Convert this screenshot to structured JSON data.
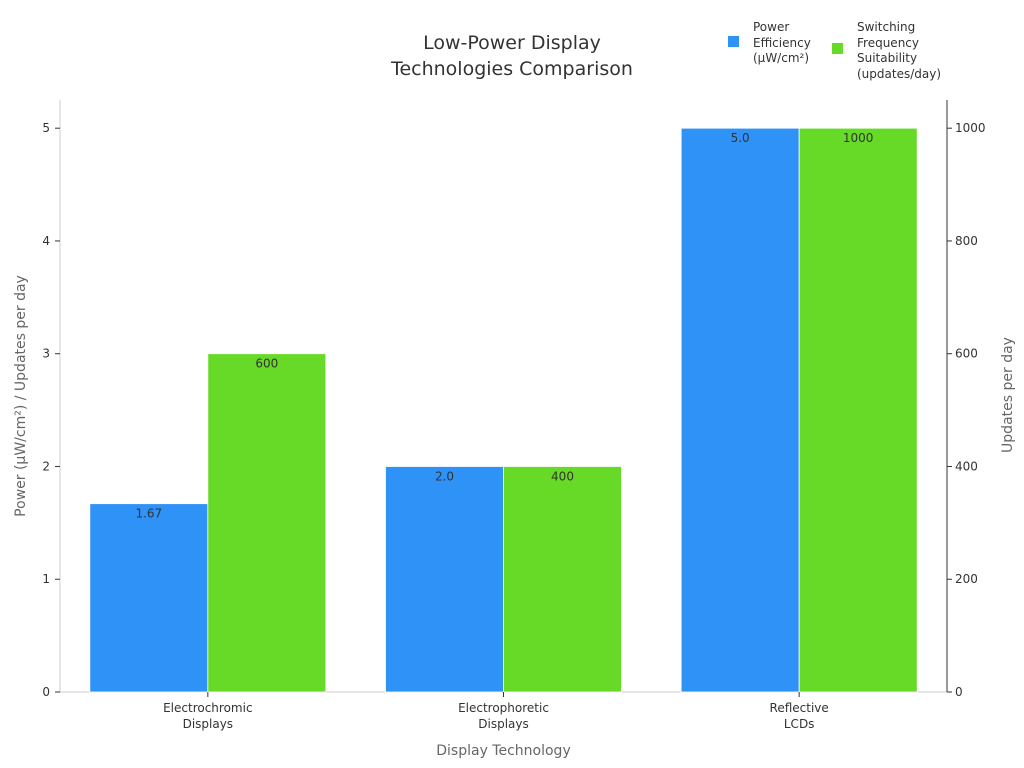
{
  "colors": {
    "power": "#2f92f7",
    "frequency": "#66da26",
    "axis": "#333333",
    "axis_title": "#666666",
    "border": "#cccccc"
  },
  "chart_data": {
    "type": "bar",
    "title": "Low-Power Display\nTechnologies Comparison",
    "xlabel": "Display Technology",
    "ylabel": "Power (µW/cm²) / Updates per day",
    "ylabel_right": "Updates per day",
    "categories": [
      "Electrochromic\nDisplays",
      "Electrophoretic\nDisplays",
      "Reflective\nLCDs"
    ],
    "ylim": [
      0,
      5.25
    ],
    "ylim_right": [
      0,
      1050
    ],
    "yticks": [
      0,
      1,
      2,
      3,
      4,
      5
    ],
    "yticks_right": [
      0,
      200,
      400,
      600,
      800,
      1000
    ],
    "grid": false,
    "legend_position": "top-right",
    "series": [
      {
        "name": "Power\nEfficiency\n(µW/cm²)",
        "axis": "left",
        "values": [
          1.67,
          2.0,
          5.0
        ],
        "labels": [
          "1.67",
          "2.0",
          "5.0"
        ]
      },
      {
        "name": "Switching\nFrequency\nSuitability\n(updates/day)",
        "axis": "right",
        "values": [
          600,
          400,
          1000
        ],
        "labels": [
          "600",
          "400",
          "1000"
        ]
      }
    ]
  }
}
